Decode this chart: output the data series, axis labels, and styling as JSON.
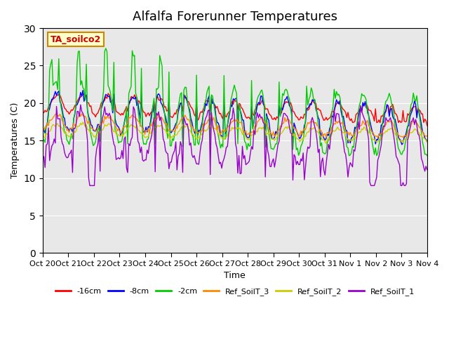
{
  "title": "Alfalfa Forerunner Temperatures",
  "xlabel": "Time",
  "ylabel": "Temperatures (C)",
  "annotation_text": "TA_soilco2",
  "annotation_color": "#cc0000",
  "annotation_bg": "#ffffcc",
  "annotation_border": "#cc8800",
  "ylim": [
    0,
    30
  ],
  "yticks": [
    0,
    5,
    10,
    15,
    20,
    25,
    30
  ],
  "xtick_labels": [
    "Oct 20",
    "Oct 21",
    "Oct 22",
    "Oct 23",
    "Oct 24",
    "Oct 25",
    "Oct 26",
    "Oct 27",
    "Oct 28",
    "Oct 29",
    "Oct 30",
    "Oct 31",
    "Nov 1",
    "Nov 2",
    "Nov 3",
    "Nov 4"
  ],
  "legend_labels": [
    "-16cm",
    "-8cm",
    "-2cm",
    "Ref_SoilT_3",
    "Ref_SoilT_2",
    "Ref_SoilT_1"
  ],
  "colors": {
    "-16cm": "#ff0000",
    "-8cm": "#0000ff",
    "-2cm": "#00cc00",
    "Ref_SoilT_3": "#ff8800",
    "Ref_SoilT_2": "#cccc00",
    "Ref_SoilT_1": "#9900cc"
  },
  "background_color": "#e8e8e8",
  "n_points": 336
}
